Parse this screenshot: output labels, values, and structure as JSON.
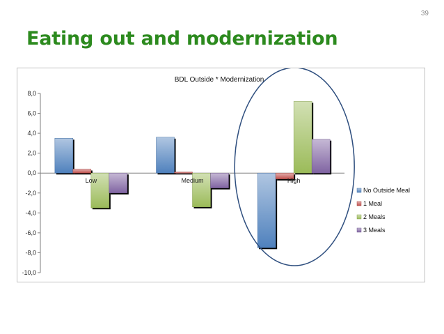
{
  "slide": {
    "page_number": "39",
    "title": "Eating out and modernization"
  },
  "chart_data": {
    "type": "bar",
    "title": "BDL Outside * Modernization",
    "xlabel": "",
    "ylabel": "",
    "categories": [
      "Low",
      "Medium",
      "High"
    ],
    "ylim": [
      -10,
      8
    ],
    "yticks": [
      "8,0",
      "6,0",
      "4,0",
      "2,0",
      "0,0",
      "-2,0",
      "-4,0",
      "-6,0",
      "-8,0",
      "-10,0"
    ],
    "ytick_values": [
      8,
      6,
      4,
      2,
      0,
      -2,
      -4,
      -6,
      -8,
      -10
    ],
    "grid": false,
    "legend_position": "right",
    "series": [
      {
        "name": "No Outside Meal",
        "values": [
          3.5,
          3.6,
          -7.5
        ],
        "color": "#4f81bd"
      },
      {
        "name": "1 Meal",
        "values": [
          0.4,
          0.1,
          -0.6
        ],
        "color": "#c0504d"
      },
      {
        "name": "2 Meals",
        "values": [
          -3.5,
          -3.4,
          7.2
        ],
        "color": "#9bbb59"
      },
      {
        "name": "3 Meals",
        "values": [
          -2.0,
          -1.5,
          3.4
        ],
        "color": "#8064a2"
      }
    ],
    "highlight": {
      "shape": "ellipse",
      "around_category": "High",
      "color": "#2f4f7f"
    }
  }
}
